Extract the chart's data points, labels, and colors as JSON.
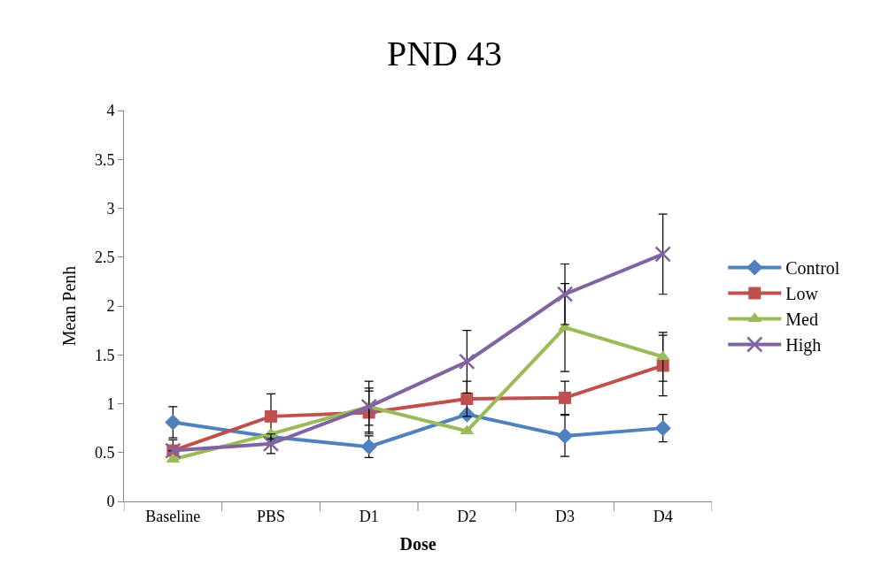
{
  "chart_data": {
    "type": "line",
    "title": "PND 43",
    "xlabel": "Dose",
    "ylabel": "Mean Penh",
    "categories": [
      "Baseline",
      "PBS",
      "D1",
      "D2",
      "D3",
      "D4"
    ],
    "series": [
      {
        "name": "Control",
        "color": "#4f81bd",
        "marker": "diamond",
        "values": [
          0.81,
          0.66,
          0.56,
          0.89,
          0.67,
          0.75
        ],
        "errors": [
          0.16,
          null,
          0.11,
          null,
          0.21,
          0.14
        ]
      },
      {
        "name": "Low",
        "color": "#c0504d",
        "marker": "square",
        "values": [
          0.52,
          0.87,
          0.91,
          1.05,
          1.06,
          1.39
        ],
        "errors": [
          0.11,
          0.23,
          0.22,
          0.18,
          0.17,
          0.31
        ]
      },
      {
        "name": "Med",
        "color": "#9bbb59",
        "marker": "triangle",
        "values": [
          0.43,
          0.69,
          0.97,
          0.72,
          1.78,
          1.48
        ],
        "errors": [
          null,
          null,
          0.26,
          null,
          0.45,
          0.25
        ]
      },
      {
        "name": "High",
        "color": "#8064a2",
        "marker": "cross",
        "values": [
          0.52,
          0.59,
          0.97,
          1.43,
          2.12,
          2.53
        ],
        "errors": [
          null,
          0.1,
          0.19,
          0.32,
          0.31,
          0.41
        ]
      }
    ],
    "ylim": [
      0,
      4
    ],
    "yticks": [
      0,
      0.5,
      1,
      1.5,
      2,
      2.5,
      3,
      3.5,
      4
    ],
    "legend": "right",
    "line_style": "solid"
  }
}
